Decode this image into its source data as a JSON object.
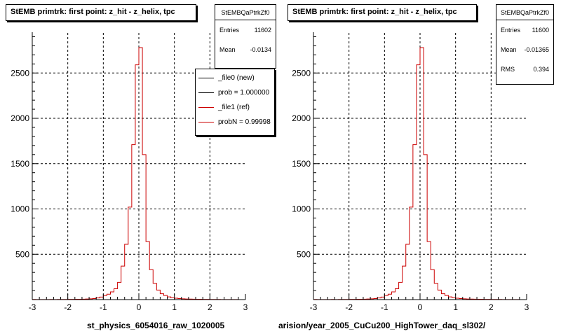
{
  "chart_data": [
    {
      "type": "histogram",
      "title": "StEMB primtrk: first point: z_hit - z_helix, tpc",
      "xlabel": "st_physics_6054016_raw_1020005",
      "ylabel": "",
      "xlim": [
        -3,
        3
      ],
      "ylim": [
        0,
        2950
      ],
      "xticks": [
        -3,
        -2,
        -1,
        0,
        1,
        2,
        3
      ],
      "xtick_labels": [
        "-3",
        "-2",
        "-1",
        "0",
        "1",
        "2",
        "3"
      ],
      "yticks": [
        500,
        1000,
        1500,
        2000,
        2500
      ],
      "ytick_labels": [
        "500",
        "1000",
        "1500",
        "2000",
        "2500"
      ],
      "grid": true,
      "stats": {
        "name": "StEMBQaPtrkZf0",
        "entries_label": "Entries",
        "entries": "11602",
        "mean_label": "Mean",
        "mean": "-0.0134"
      },
      "legend": [
        "_file0 (new)",
        "prob = 1.000000",
        "_file1 (ref)",
        "probN = 0.99998"
      ],
      "legend_position": "top-right",
      "series": [
        {
          "name": "_file1 (ref)",
          "color": "#cc0000",
          "bin_edges": [
            -3.0,
            -2.9,
            -2.8,
            -2.7,
            -2.6,
            -2.5,
            -2.4,
            -2.3,
            -2.2,
            -2.1,
            -2.0,
            -1.9,
            -1.8,
            -1.7,
            -1.6,
            -1.5,
            -1.4,
            -1.3,
            -1.2,
            -1.1,
            -1.0,
            -0.9,
            -0.8,
            -0.7,
            -0.6,
            -0.5,
            -0.4,
            -0.3,
            -0.2,
            -0.1,
            0.0,
            0.1,
            0.2,
            0.3,
            0.4,
            0.5,
            0.6,
            0.7,
            0.8,
            0.9,
            1.0,
            1.1,
            1.2,
            1.3,
            1.4,
            1.5,
            1.6,
            1.7,
            1.8,
            1.9,
            2.0,
            2.1,
            2.2,
            2.3,
            2.4,
            2.5,
            2.6,
            2.7,
            2.8
          ],
          "counts": [
            2,
            1,
            1,
            1,
            1,
            2,
            1,
            2,
            2,
            2,
            3,
            3,
            4,
            4,
            5,
            7,
            9,
            12,
            18,
            28,
            45,
            60,
            85,
            120,
            190,
            370,
            610,
            1020,
            1710,
            2590,
            2780,
            1600,
            640,
            330,
            180,
            105,
            65,
            45,
            30,
            20,
            15,
            12,
            9,
            7,
            6,
            5,
            4,
            4,
            3,
            3,
            2,
            2,
            2,
            1,
            1,
            1,
            1,
            1
          ]
        }
      ]
    },
    {
      "type": "histogram",
      "title": "StEMB primtrk: first point: z_hit - z_helix, tpc",
      "xlabel": "arision/year_2005_CuCu200_HighTower_daq_sl302/",
      "ylabel": "",
      "xlim": [
        -3,
        3
      ],
      "ylim": [
        0,
        2950
      ],
      "xticks": [
        -3,
        -2,
        -1,
        0,
        1,
        2,
        3
      ],
      "xtick_labels": [
        "-3",
        "-2",
        "-1",
        "0",
        "1",
        "2",
        "3"
      ],
      "yticks": [
        500,
        1000,
        1500,
        2000,
        2500
      ],
      "ytick_labels": [
        "500",
        "1000",
        "1500",
        "2000",
        "2500"
      ],
      "grid": true,
      "stats": {
        "name": "StEMBQaPtrkZf0",
        "entries_label": "Entries",
        "entries": "11600",
        "mean_label": "Mean",
        "mean": "-0.01365",
        "rms_label": "RMS",
        "rms": "0.394"
      },
      "series": [
        {
          "color": "#cc0000",
          "bin_edges": [
            -3.0,
            -2.9,
            -2.8,
            -2.7,
            -2.6,
            -2.5,
            -2.4,
            -2.3,
            -2.2,
            -2.1,
            -2.0,
            -1.9,
            -1.8,
            -1.7,
            -1.6,
            -1.5,
            -1.4,
            -1.3,
            -1.2,
            -1.1,
            -1.0,
            -0.9,
            -0.8,
            -0.7,
            -0.6,
            -0.5,
            -0.4,
            -0.3,
            -0.2,
            -0.1,
            0.0,
            0.1,
            0.2,
            0.3,
            0.4,
            0.5,
            0.6,
            0.7,
            0.8,
            0.9,
            1.0,
            1.1,
            1.2,
            1.3,
            1.4,
            1.5,
            1.6,
            1.7,
            1.8,
            1.9,
            2.0,
            2.1,
            2.2,
            2.3,
            2.4,
            2.5,
            2.6,
            2.7,
            2.8
          ],
          "counts": [
            2,
            1,
            1,
            1,
            1,
            2,
            1,
            2,
            2,
            2,
            3,
            3,
            4,
            4,
            5,
            7,
            9,
            12,
            18,
            28,
            45,
            60,
            85,
            120,
            190,
            370,
            610,
            1020,
            1710,
            2590,
            2780,
            1600,
            640,
            330,
            180,
            105,
            65,
            45,
            30,
            20,
            15,
            12,
            9,
            7,
            6,
            5,
            4,
            4,
            3,
            3,
            2,
            2,
            2,
            1,
            1,
            1,
            1,
            1
          ]
        }
      ]
    }
  ]
}
